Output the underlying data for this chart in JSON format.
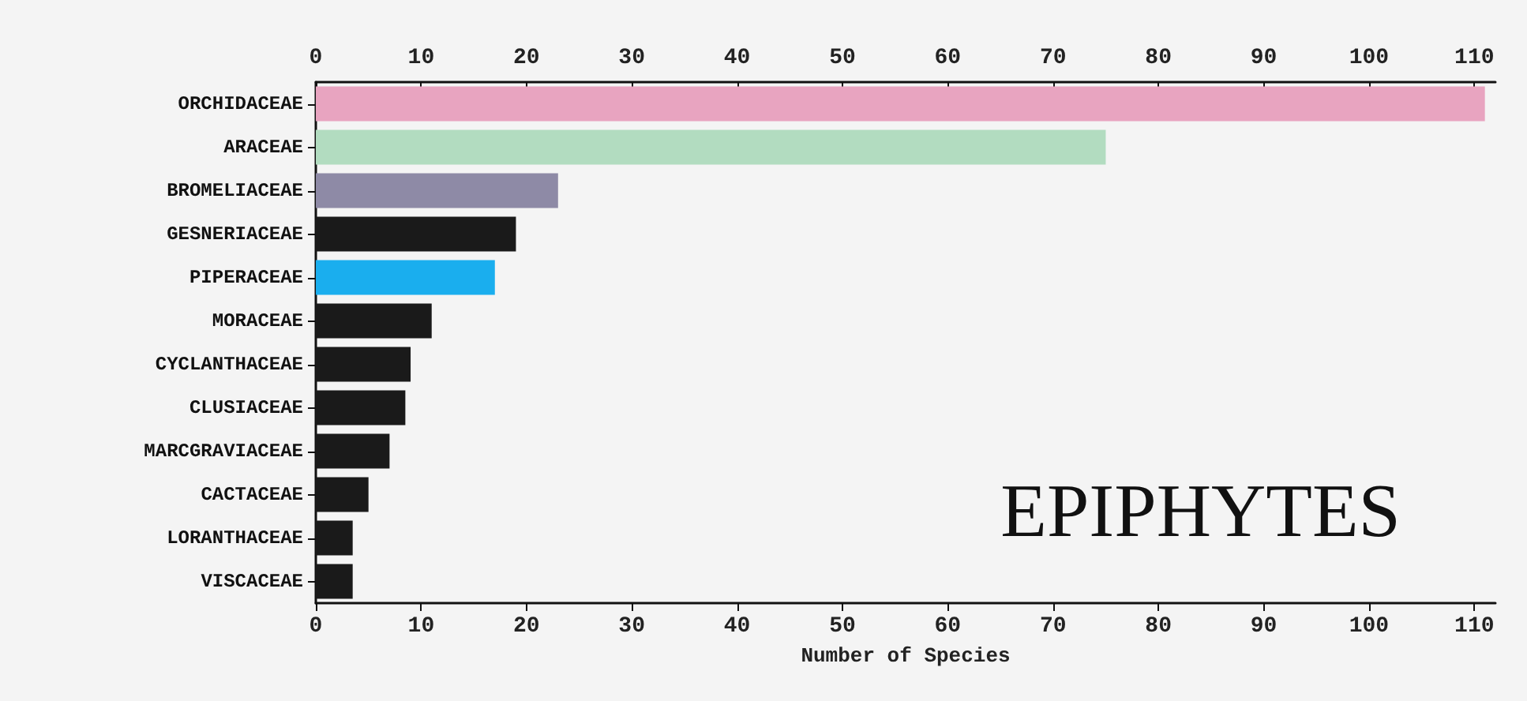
{
  "chart_data": {
    "type": "bar",
    "orientation": "horizontal",
    "xlabel": "Number of Species",
    "categories": [
      "ORCHIDACEAE",
      "ARACEAE",
      "BROMELIACEAE",
      "GESNERIACEAE",
      "PIPERACEAE",
      "MORACEAE",
      "CYCLANTHACEAE",
      "CLUSIACEAE",
      "MARCGRAVIACEAE",
      "CACTACEAE",
      "LORANTHACEAE",
      "VISCACEAE"
    ],
    "values": [
      111,
      75,
      23,
      19,
      17,
      11,
      9,
      8.5,
      7,
      5,
      3.5,
      3.5
    ],
    "colors": [
      "#e8a4c0",
      "#b2dcc0",
      "#8e8aa6",
      "#1a1a1a",
      "#1aaeee",
      "#1a1a1a",
      "#1a1a1a",
      "#1a1a1a",
      "#1a1a1a",
      "#1a1a1a",
      "#1a1a1a",
      "#1a1a1a"
    ],
    "xlim": [
      0,
      112
    ],
    "xticks": [
      0,
      10,
      20,
      30,
      40,
      50,
      60,
      70,
      80,
      90,
      100,
      110
    ],
    "x2lim": [
      0,
      112
    ],
    "x2ticks": [
      0,
      10,
      20,
      30,
      40,
      50,
      60,
      70,
      80,
      90,
      100,
      110
    ],
    "annotations": [
      "EPIPHYTES"
    ],
    "grid": false
  }
}
